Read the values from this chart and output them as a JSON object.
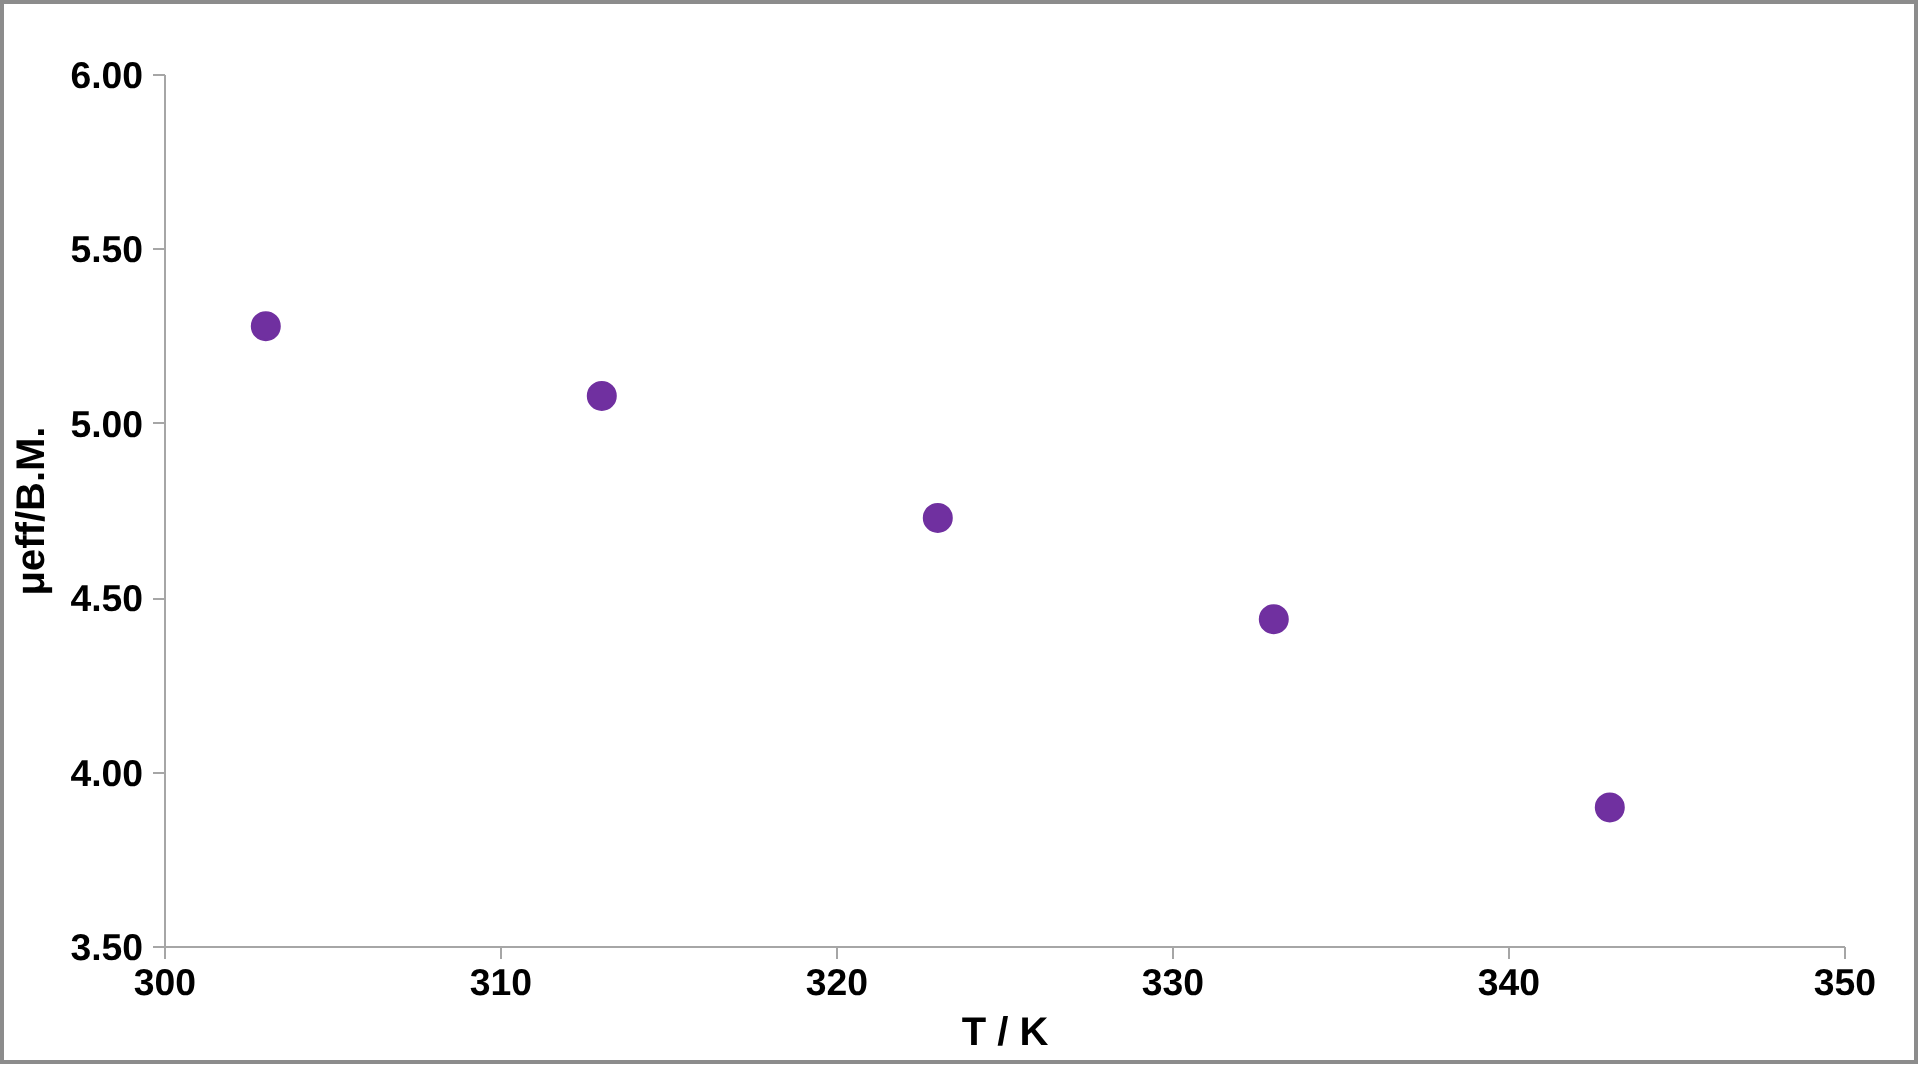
{
  "chart_data": {
    "type": "scatter",
    "xlabel": "T / K",
    "ylabel": "μeff/B.M.",
    "x": [
      303,
      313,
      323,
      333,
      343
    ],
    "series": [
      {
        "color": "#7030a0",
        "values": [
          5.28,
          5.08,
          4.73,
          4.44,
          3.9
        ]
      }
    ],
    "xlim": [
      300,
      350
    ],
    "xticks": [
      300,
      310,
      320,
      330,
      340,
      350
    ],
    "ylim": [
      3.5,
      6.0
    ],
    "yticks": [
      {
        "value": 3.5,
        "label": "3.50"
      },
      {
        "value": 4.0,
        "label": "4.00"
      },
      {
        "value": 4.5,
        "label": "4.50"
      },
      {
        "value": 5.0,
        "label": "5.00"
      },
      {
        "value": 5.5,
        "label": "5.50"
      },
      {
        "value": 6.0,
        "label": "6.00"
      }
    ],
    "grid": false,
    "marker": "circle"
  }
}
